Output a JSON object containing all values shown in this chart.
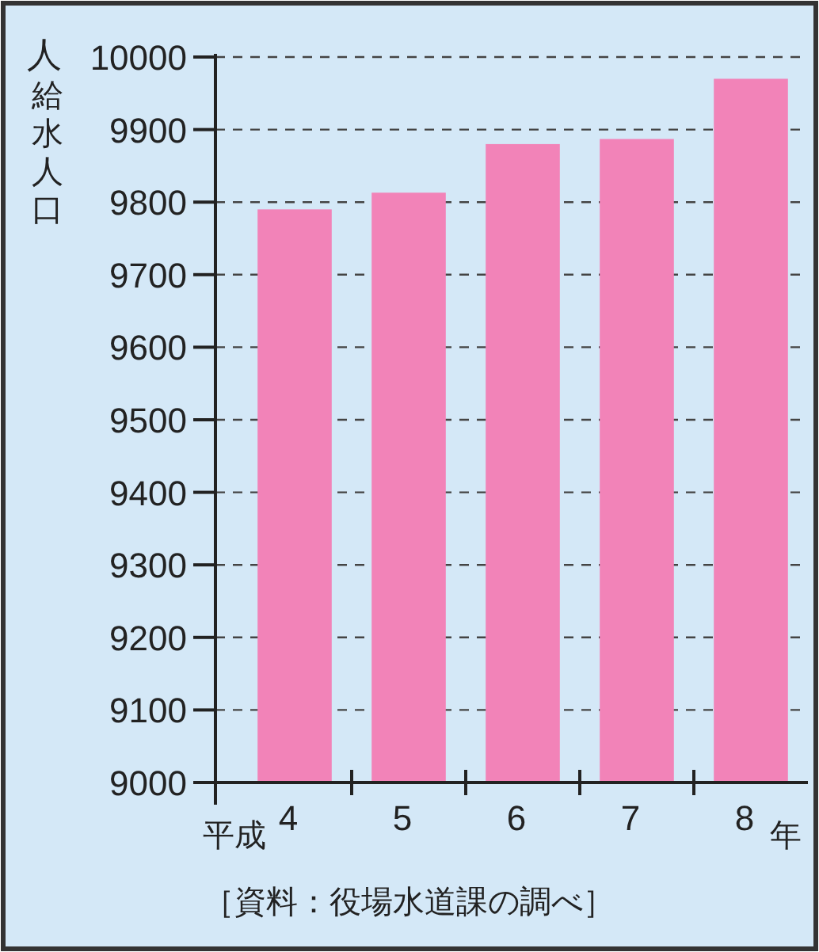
{
  "chart_data": {
    "type": "bar",
    "ylabel": "給水人口",
    "xlabel": "年",
    "categories": [
      "4",
      "5",
      "6",
      "7",
      "8"
    ],
    "values": [
      9790,
      9813,
      9880,
      9887,
      9970
    ],
    "color": "#f283b8",
    "ylim": [
      9000,
      10000
    ],
    "yticks": [
      9000,
      9100,
      9200,
      9300,
      9400,
      9500,
      9600,
      9700,
      9800,
      9900,
      10000
    ],
    "grid": "y",
    "line_style": "dashed",
    "annotations": [
      "人",
      "平成",
      "［資料：役場水道課の調べ］"
    ]
  }
}
